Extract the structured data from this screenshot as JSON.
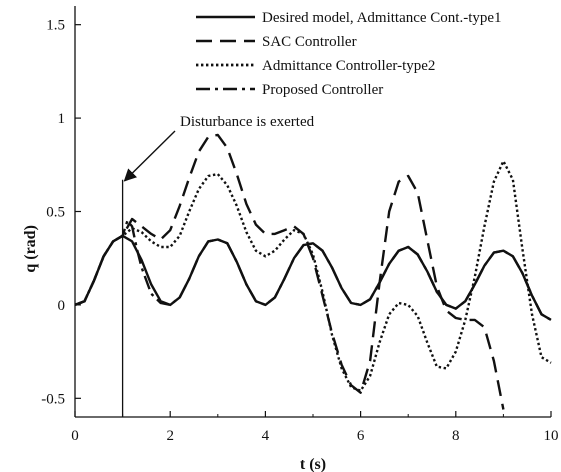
{
  "chart_data": {
    "type": "line",
    "xlabel": "t (s)",
    "ylabel": "q (rad)",
    "xlim": [
      0,
      10
    ],
    "ylim": [
      -0.6,
      1.6
    ],
    "xticks": [
      0,
      2,
      4,
      6,
      8,
      10
    ],
    "yticks": [
      -0.5,
      0,
      0.5,
      1,
      1.5
    ],
    "xtick_labels": [
      "0",
      "2",
      "4",
      "6",
      "8",
      "10"
    ],
    "ytick_labels": [
      "-0.5",
      "0",
      "0.5",
      "1",
      "1.5"
    ],
    "grid": false,
    "legend_position": "top-right",
    "annotation": {
      "text": "Disturbance is exerted",
      "x": 1.0
    },
    "series": [
      {
        "name": "Desired model, Admittance Cont.-type1",
        "style": "solid",
        "x": [
          0,
          0.2,
          0.4,
          0.6,
          0.8,
          1.0,
          1.2,
          1.4,
          1.6,
          1.8,
          2.0,
          2.2,
          2.4,
          2.6,
          2.8,
          3.0,
          3.2,
          3.4,
          3.6,
          3.8,
          4.0,
          4.2,
          4.4,
          4.6,
          4.8,
          5.0,
          5.2,
          5.4,
          5.6,
          5.8,
          6.0,
          6.2,
          6.4,
          6.6,
          6.8,
          7.0,
          7.2,
          7.4,
          7.6,
          7.8,
          8.0,
          8.2,
          8.4,
          8.6,
          8.8,
          9.0,
          9.2,
          9.4,
          9.6,
          9.8,
          10.0
        ],
        "y": [
          0.0,
          0.02,
          0.13,
          0.26,
          0.34,
          0.37,
          0.34,
          0.24,
          0.11,
          0.02,
          0.0,
          0.04,
          0.14,
          0.26,
          0.34,
          0.35,
          0.33,
          0.23,
          0.11,
          0.02,
          0.0,
          0.04,
          0.14,
          0.25,
          0.32,
          0.33,
          0.29,
          0.2,
          0.09,
          0.01,
          0.0,
          0.03,
          0.12,
          0.22,
          0.29,
          0.31,
          0.27,
          0.18,
          0.07,
          0.0,
          -0.02,
          0.02,
          0.11,
          0.21,
          0.28,
          0.29,
          0.26,
          0.17,
          0.05,
          -0.05,
          -0.08
        ]
      },
      {
        "name": "SAC Controller",
        "style": "dashed",
        "x": [
          0,
          0.2,
          0.4,
          0.6,
          0.8,
          1.0,
          1.2,
          1.4,
          1.6,
          1.8,
          2.0,
          2.2,
          2.4,
          2.6,
          2.8,
          3.0,
          3.2,
          3.4,
          3.6,
          3.8,
          4.0,
          4.2,
          4.4,
          4.6,
          4.8,
          5.0,
          5.2,
          5.4,
          5.6,
          5.8,
          6.0,
          6.2,
          6.4,
          6.6,
          6.8,
          7.0,
          7.2,
          7.4,
          7.6,
          7.8,
          8.0,
          8.2,
          8.4,
          8.6,
          8.8,
          9.0
        ],
        "y": [
          0.0,
          0.02,
          0.13,
          0.26,
          0.34,
          0.37,
          0.46,
          0.42,
          0.38,
          0.35,
          0.4,
          0.53,
          0.68,
          0.82,
          0.9,
          0.91,
          0.84,
          0.7,
          0.54,
          0.43,
          0.38,
          0.38,
          0.4,
          0.42,
          0.38,
          0.25,
          0.05,
          -0.15,
          -0.32,
          -0.43,
          -0.47,
          -0.3,
          0.12,
          0.5,
          0.66,
          0.69,
          0.6,
          0.35,
          0.1,
          -0.03,
          -0.07,
          -0.08,
          -0.08,
          -0.12,
          -0.3,
          -0.56
        ]
      },
      {
        "name": "Admittance Controller-type2",
        "style": "dotted",
        "x": [
          0,
          0.2,
          0.4,
          0.6,
          0.8,
          1.0,
          1.2,
          1.4,
          1.6,
          1.8,
          2.0,
          2.2,
          2.4,
          2.6,
          2.8,
          3.0,
          3.2,
          3.4,
          3.6,
          3.8,
          4.0,
          4.2,
          4.4,
          4.6,
          4.8,
          5.0,
          5.2,
          5.4,
          5.6,
          5.8,
          6.0,
          6.2,
          6.4,
          6.6,
          6.8,
          7.0,
          7.2,
          7.4,
          7.6,
          7.8,
          8.0,
          8.2,
          8.4,
          8.6,
          8.8,
          9.0,
          9.2,
          9.4,
          9.6,
          9.8,
          10.0
        ],
        "y": [
          0.0,
          0.02,
          0.13,
          0.26,
          0.34,
          0.37,
          0.41,
          0.39,
          0.34,
          0.31,
          0.31,
          0.37,
          0.5,
          0.62,
          0.69,
          0.7,
          0.64,
          0.53,
          0.39,
          0.29,
          0.26,
          0.29,
          0.35,
          0.4,
          0.38,
          0.27,
          0.07,
          -0.16,
          -0.34,
          -0.44,
          -0.46,
          -0.38,
          -0.2,
          -0.05,
          0.01,
          0.0,
          -0.06,
          -0.2,
          -0.33,
          -0.34,
          -0.25,
          -0.08,
          0.15,
          0.42,
          0.66,
          0.77,
          0.67,
          0.3,
          -0.05,
          -0.28,
          -0.31
        ]
      },
      {
        "name": "Proposed Controller",
        "style": "dashdot",
        "x": [
          0,
          0.2,
          0.4,
          0.6,
          0.8,
          1.0,
          1.1,
          1.2,
          1.3,
          1.4,
          1.6,
          1.8,
          2.0,
          2.2,
          2.4,
          2.6,
          2.8,
          3.0,
          3.2,
          3.4,
          3.6,
          3.8,
          4.0,
          4.2,
          4.4,
          4.6,
          4.8,
          5.0,
          5.2,
          5.4,
          5.6,
          5.8,
          6.0,
          6.2,
          6.4,
          6.6,
          6.8,
          7.0,
          7.2,
          7.4,
          7.6,
          7.8,
          8.0,
          8.2,
          8.4,
          8.6,
          8.8,
          9.0,
          9.2,
          9.4,
          9.6,
          9.8,
          10.0
        ],
        "y": [
          0.0,
          0.02,
          0.13,
          0.26,
          0.34,
          0.37,
          0.45,
          0.42,
          0.3,
          0.2,
          0.06,
          0.01,
          0.0,
          0.04,
          0.14,
          0.26,
          0.34,
          0.35,
          0.33,
          0.23,
          0.11,
          0.02,
          0.0,
          0.04,
          0.14,
          0.25,
          0.32,
          0.33,
          0.29,
          0.2,
          0.09,
          0.01,
          0.0,
          0.03,
          0.12,
          0.22,
          0.29,
          0.31,
          0.27,
          0.18,
          0.07,
          0.0,
          -0.02,
          0.02,
          0.11,
          0.21,
          0.28,
          0.29,
          0.26,
          0.17,
          0.05,
          -0.05,
          -0.08
        ]
      }
    ]
  }
}
